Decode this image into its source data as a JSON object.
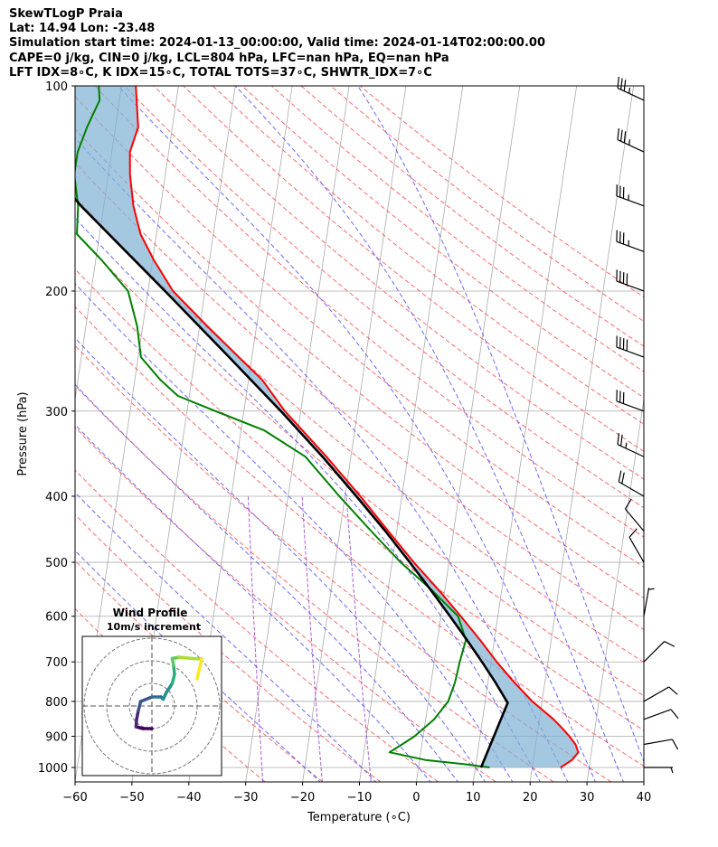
{
  "header": {
    "line1": "SkewTLogP Praia",
    "line2": "Lat: 14.94   Lon: -23.48",
    "line3": "Simulation start time: 2024-01-13_00:00:00, Valid time: 2024-01-14T02:00:00.00",
    "line4": "CAPE=0 j/kg, CIN=0 j/kg, LCL=804 hPa, LFC=nan hPa, EQ=nan hPa",
    "line5": "LFT IDX=8∘C, K IDX=15∘C, TOTAL TOTS=37∘C, SHWTR_IDX=7∘C"
  },
  "colors": {
    "temperature": "#ff0000",
    "dewpoint": "#008000",
    "parcel": "#000000",
    "shade": "#7fb0d4",
    "dry_adiabat": "#ff5050",
    "moist_adiabat": "#5050ff",
    "mixing_ratio": "#9933cc",
    "isotherm": "#aaaaaa",
    "isobar": "#aaaaaa"
  },
  "chart_data": {
    "type": "line",
    "title": "SkewTLogP Praia",
    "xlabel": "Temperature (∘C)",
    "ylabel": "Pressure (hPa)",
    "xlim": [
      -60,
      40
    ],
    "ylim": [
      1050,
      100
    ],
    "x_ticks": [
      -60,
      -50,
      -40,
      -30,
      -20,
      -10,
      0,
      10,
      20,
      30,
      40
    ],
    "x_tick_labels": [
      "−60",
      "−50",
      "−40",
      "−30",
      "−20",
      "−10",
      "0",
      "10",
      "20",
      "30",
      "40"
    ],
    "y_ticks": [
      1000,
      900,
      800,
      700,
      600,
      500,
      400,
      300,
      200,
      100
    ],
    "y_tick_labels": [
      "1000",
      "900",
      "800",
      "700",
      "600",
      "500",
      "400",
      "300",
      "200",
      "100"
    ],
    "skew_per_decade": 112,
    "series": [
      {
        "name": "Temperature",
        "points": [
          {
            "p": 1000,
            "t": 25.0
          },
          {
            "p": 975,
            "t": 26.8
          },
          {
            "p": 950,
            "t": 27.7
          },
          {
            "p": 925,
            "t": 27.0
          },
          {
            "p": 900,
            "t": 25.7
          },
          {
            "p": 875,
            "t": 24.2
          },
          {
            "p": 850,
            "t": 22.5
          },
          {
            "p": 800,
            "t": 18.3
          },
          {
            "p": 750,
            "t": 14.6
          },
          {
            "p": 700,
            "t": 11.0
          },
          {
            "p": 650,
            "t": 7.5
          },
          {
            "p": 600,
            "t": 3.5
          },
          {
            "p": 550,
            "t": -1.0
          },
          {
            "p": 500,
            "t": -6.2
          },
          {
            "p": 450,
            "t": -11.5
          },
          {
            "p": 400,
            "t": -17.3
          },
          {
            "p": 350,
            "t": -24.3
          },
          {
            "p": 300,
            "t": -32.8
          },
          {
            "p": 270,
            "t": -37.6
          },
          {
            "p": 250,
            "t": -42.3
          },
          {
            "p": 225,
            "t": -48.7
          },
          {
            "p": 200,
            "t": -55.6
          },
          {
            "p": 180,
            "t": -59.8
          },
          {
            "p": 165,
            "t": -62.8
          },
          {
            "p": 150,
            "t": -64.8
          },
          {
            "p": 135,
            "t": -66.2
          },
          {
            "p": 125,
            "t": -66.8
          },
          {
            "p": 115,
            "t": -66.0
          },
          {
            "p": 100,
            "t": -67.5
          }
        ]
      },
      {
        "name": "Dewpoint",
        "points": [
          {
            "p": 1000,
            "t": 12.5
          },
          {
            "p": 990,
            "t": 8.5
          },
          {
            "p": 975,
            "t": 1.0
          },
          {
            "p": 950,
            "t": -5.5
          },
          {
            "p": 925,
            "t": -3.5
          },
          {
            "p": 900,
            "t": -1.5
          },
          {
            "p": 850,
            "t": 1.5
          },
          {
            "p": 800,
            "t": 3.5
          },
          {
            "p": 750,
            "t": 4.2
          },
          {
            "p": 700,
            "t": 4.5
          },
          {
            "p": 650,
            "t": 5.0
          },
          {
            "p": 600,
            "t": 3.0
          },
          {
            "p": 550,
            "t": -2.2
          },
          {
            "p": 500,
            "t": -8.5
          },
          {
            "p": 450,
            "t": -14.5
          },
          {
            "p": 400,
            "t": -21.0
          },
          {
            "p": 350,
            "t": -28.0
          },
          {
            "p": 320,
            "t": -36.0
          },
          {
            "p": 300,
            "t": -45.0
          },
          {
            "p": 285,
            "t": -52.0
          },
          {
            "p": 270,
            "t": -55.5
          },
          {
            "p": 250,
            "t": -59.5
          },
          {
            "p": 225,
            "t": -61.0
          },
          {
            "p": 200,
            "t": -63.5
          },
          {
            "p": 180,
            "t": -69.0
          },
          {
            "p": 165,
            "t": -74.0
          },
          {
            "p": 150,
            "t": -74.5
          },
          {
            "p": 135,
            "t": -76.0
          },
          {
            "p": 125,
            "t": -76.0
          },
          {
            "p": 115,
            "t": -75.0
          },
          {
            "p": 105,
            "t": -73.5
          },
          {
            "p": 100,
            "t": -74.0
          }
        ]
      },
      {
        "name": "Parcel",
        "points": [
          {
            "p": 1000,
            "t": 11.0
          },
          {
            "p": 804,
            "t": 14.0
          },
          {
            "p": 750,
            "t": 11.3
          },
          {
            "p": 700,
            "t": 8.4
          },
          {
            "p": 650,
            "t": 5.2
          },
          {
            "p": 600,
            "t": 1.6
          },
          {
            "p": 550,
            "t": -2.4
          },
          {
            "p": 500,
            "t": -6.9
          },
          {
            "p": 450,
            "t": -12.0
          },
          {
            "p": 400,
            "t": -18.0
          },
          {
            "p": 350,
            "t": -25.0
          },
          {
            "p": 300,
            "t": -33.5
          },
          {
            "p": 250,
            "t": -44.0
          },
          {
            "p": 200,
            "t": -57.0
          },
          {
            "p": 150,
            "t": -74.0
          },
          {
            "p": 100,
            "t": -95.0
          }
        ]
      }
    ],
    "wind_barbs": [
      {
        "p": 1000,
        "speed_kt": 5,
        "dir": 90
      },
      {
        "p": 925,
        "speed_kt": 10,
        "dir": 80
      },
      {
        "p": 850,
        "speed_kt": 10,
        "dir": 70
      },
      {
        "p": 800,
        "speed_kt": 10,
        "dir": 60
      },
      {
        "p": 700,
        "speed_kt": 10,
        "dir": 45
      },
      {
        "p": 600,
        "speed_kt": 5,
        "dir": 10
      },
      {
        "p": 500,
        "speed_kt": 10,
        "dir": 330
      },
      {
        "p": 450,
        "speed_kt": 10,
        "dir": 320
      },
      {
        "p": 400,
        "speed_kt": 20,
        "dir": 300
      },
      {
        "p": 350,
        "speed_kt": 25,
        "dir": 295
      },
      {
        "p": 300,
        "speed_kt": 30,
        "dir": 290
      },
      {
        "p": 250,
        "speed_kt": 40,
        "dir": 290
      },
      {
        "p": 200,
        "speed_kt": 40,
        "dir": 290
      },
      {
        "p": 175,
        "speed_kt": 35,
        "dir": 290
      },
      {
        "p": 150,
        "speed_kt": 35,
        "dir": 290
      },
      {
        "p": 125,
        "speed_kt": 35,
        "dir": 295
      },
      {
        "p": 105,
        "speed_kt": 35,
        "dir": 295
      }
    ],
    "hodograph": {
      "title": "Wind Profile",
      "subtitle": "10m/s increment",
      "rings_ms": [
        10,
        20,
        30
      ],
      "points": [
        {
          "u": 0,
          "v": -5
        },
        {
          "u": -2,
          "v": -5
        },
        {
          "u": -3.5,
          "v": -4.6
        },
        {
          "u": -3.4,
          "v": -3
        },
        {
          "u": -3,
          "v": -1
        },
        {
          "u": -2.5,
          "v": 1
        },
        {
          "u": 0,
          "v": 2
        },
        {
          "u": 2,
          "v": 2
        },
        {
          "u": 2.5,
          "v": 1.5
        },
        {
          "u": 3.2,
          "v": 3
        },
        {
          "u": 4.5,
          "v": 5
        },
        {
          "u": 5,
          "v": 7
        },
        {
          "u": 4.8,
          "v": 9
        },
        {
          "u": 4.5,
          "v": 10.5
        },
        {
          "u": 6,
          "v": 10.8
        },
        {
          "u": 9,
          "v": 10.5
        },
        {
          "u": 11,
          "v": 10.4
        },
        {
          "u": 10,
          "v": 6
        }
      ]
    }
  }
}
